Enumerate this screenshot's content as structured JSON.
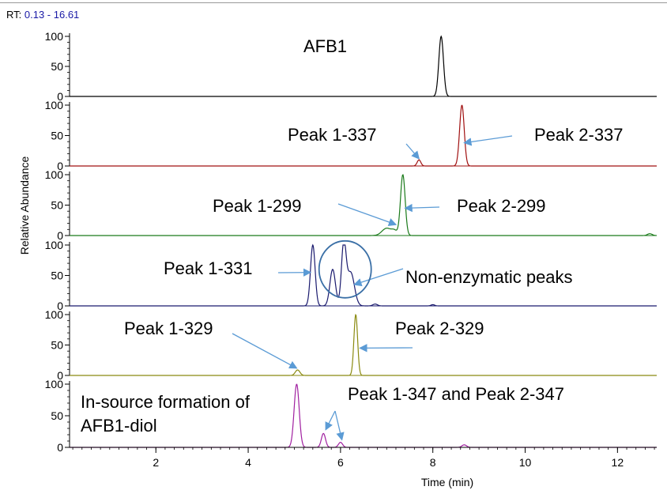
{
  "header": {
    "rt_label": "RT:",
    "rt_range": "0.13 - 16.61",
    "rt_color": "#1a1aa6"
  },
  "chart_data": {
    "type": "line",
    "title": "",
    "xlabel": "Time (min)",
    "ylabel": "Relative Abundance",
    "xlim": [
      0.13,
      12.85
    ],
    "x_ticks": [
      2,
      4,
      6,
      8,
      10,
      12
    ],
    "y_ticks": [
      0,
      50,
      100
    ],
    "grid": false,
    "panels": [
      {
        "name": "afb1",
        "color": "#000000",
        "ylim": [
          0,
          100
        ],
        "peaks": [
          {
            "rt": 8.18,
            "height": 100,
            "width": 0.05
          }
        ],
        "annotations": [
          {
            "text": "AFB1",
            "arrows": []
          }
        ]
      },
      {
        "name": "m337",
        "color": "#a01010",
        "ylim": [
          0,
          100
        ],
        "peaks": [
          {
            "rt": 7.7,
            "height": 10,
            "width": 0.04
          },
          {
            "rt": 8.63,
            "height": 100,
            "width": 0.05
          }
        ],
        "annotations": [
          {
            "text": "Peak 1-337",
            "arrows": [
              {
                "to_rt": 7.7,
                "to_y": 12
              }
            ]
          },
          {
            "text": "Peak 2-337",
            "arrows": [
              {
                "to_rt": 8.68,
                "to_y": 38
              }
            ]
          }
        ]
      },
      {
        "name": "m299",
        "color": "#1a7a1a",
        "ylim": [
          0,
          100
        ],
        "peaks": [
          {
            "rt": 7.0,
            "height": 12,
            "width": 0.1
          },
          {
            "rt": 7.17,
            "height": 7,
            "width": 0.06
          },
          {
            "rt": 7.35,
            "height": 100,
            "width": 0.05
          },
          {
            "rt": 12.7,
            "height": 3,
            "width": 0.05
          }
        ],
        "annotations": [
          {
            "text": "Peak 1-299",
            "arrows": [
              {
                "to_rt": 7.2,
                "to_y": 18
              }
            ]
          },
          {
            "text": "Peak 2-299",
            "arrows": [
              {
                "to_rt": 7.4,
                "to_y": 45
              }
            ]
          }
        ]
      },
      {
        "name": "m331",
        "color": "#1a1a6e",
        "ylim": [
          0,
          100
        ],
        "peaks": [
          {
            "rt": 5.4,
            "height": 100,
            "width": 0.05
          },
          {
            "rt": 5.83,
            "height": 60,
            "width": 0.06
          },
          {
            "rt": 6.07,
            "height": 100,
            "width": 0.05
          },
          {
            "rt": 6.22,
            "height": 55,
            "width": 0.08
          },
          {
            "rt": 6.75,
            "height": 3,
            "width": 0.05
          },
          {
            "rt": 8.0,
            "height": 2,
            "width": 0.04
          }
        ],
        "annotations": [
          {
            "text": "Peak 1-331",
            "arrows": [
              {
                "to_rt": 5.35,
                "to_y": 55
              }
            ]
          },
          {
            "text": "Non-enzymatic peaks",
            "arrows": [
              {
                "to_rt": 6.3,
                "to_y": 35
              }
            ]
          }
        ]
      },
      {
        "name": "m329",
        "color": "#8a8a10",
        "ylim": [
          0,
          100
        ],
        "peaks": [
          {
            "rt": 5.07,
            "height": 9,
            "width": 0.05
          },
          {
            "rt": 6.33,
            "height": 100,
            "width": 0.04
          }
        ],
        "annotations": [
          {
            "text": "Peak 1-329",
            "arrows": [
              {
                "to_rt": 5.05,
                "to_y": 12
              }
            ]
          },
          {
            "text": "Peak 2-329",
            "arrows": [
              {
                "to_rt": 6.42,
                "to_y": 45
              }
            ]
          }
        ]
      },
      {
        "name": "m347",
        "color": "#a020a0",
        "ylim": [
          0,
          100
        ],
        "peaks": [
          {
            "rt": 5.05,
            "height": 100,
            "width": 0.055
          },
          {
            "rt": 5.63,
            "height": 22,
            "width": 0.045
          },
          {
            "rt": 6.0,
            "height": 8,
            "width": 0.045
          },
          {
            "rt": 8.68,
            "height": 4,
            "width": 0.05
          }
        ],
        "annotations": [
          {
            "text": "In-source formation of",
            "arrows": []
          },
          {
            "text": "AFB1-diol",
            "arrows": []
          },
          {
            "text": "Peak 1-347 and Peak 2-347",
            "arrows": [
              {
                "to_rt": 5.68,
                "to_y": 28
              },
              {
                "to_rt": 6.03,
                "to_y": 12
              }
            ]
          }
        ]
      }
    ]
  },
  "style": {
    "arrow_color": "#5b9bd5",
    "circle_color": "#3a6fa6"
  }
}
